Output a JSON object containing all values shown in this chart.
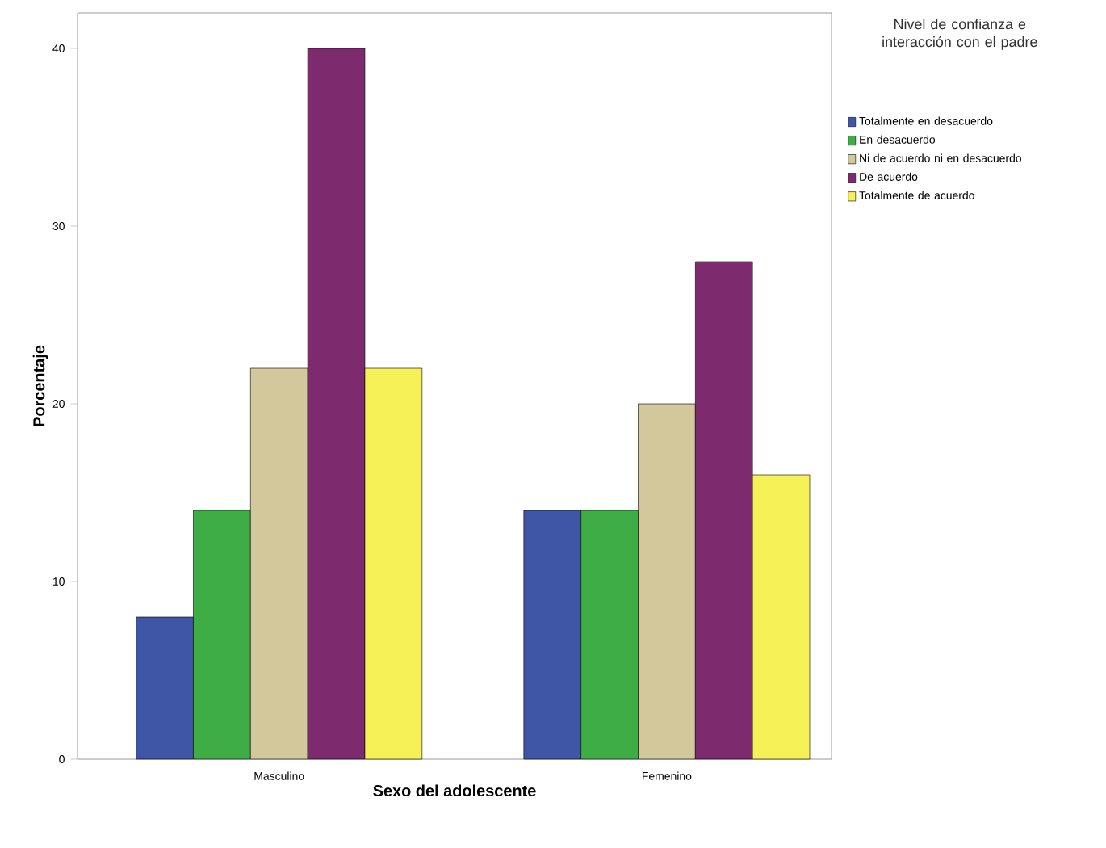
{
  "chart_data": {
    "type": "bar",
    "xlabel": "Sexo del adolescente",
    "ylabel": "Porcentaje",
    "legend_title": "Nivel de confianza e interacción con el padre",
    "categories": [
      "Masculino",
      "Femenino"
    ],
    "ylim": [
      0,
      42
    ],
    "yticks": [
      0,
      10,
      20,
      30,
      40
    ],
    "legend": "right",
    "grid": false,
    "series": [
      {
        "name": "Totalmente en desacuerdo",
        "color": "#3f55a5",
        "values": [
          8,
          14
        ]
      },
      {
        "name": "En desacuerdo",
        "color": "#3fad46",
        "values": [
          14,
          14
        ]
      },
      {
        "name": "Ni de acuerdo ni en desacuerdo",
        "color": "#d3c89b",
        "values": [
          22,
          20
        ]
      },
      {
        "name": "De acuerdo",
        "color": "#7d2a6e",
        "values": [
          40,
          28
        ]
      },
      {
        "name": "Totalmente de acuerdo",
        "color": "#f7f158",
        "values": [
          22,
          16
        ]
      }
    ]
  }
}
